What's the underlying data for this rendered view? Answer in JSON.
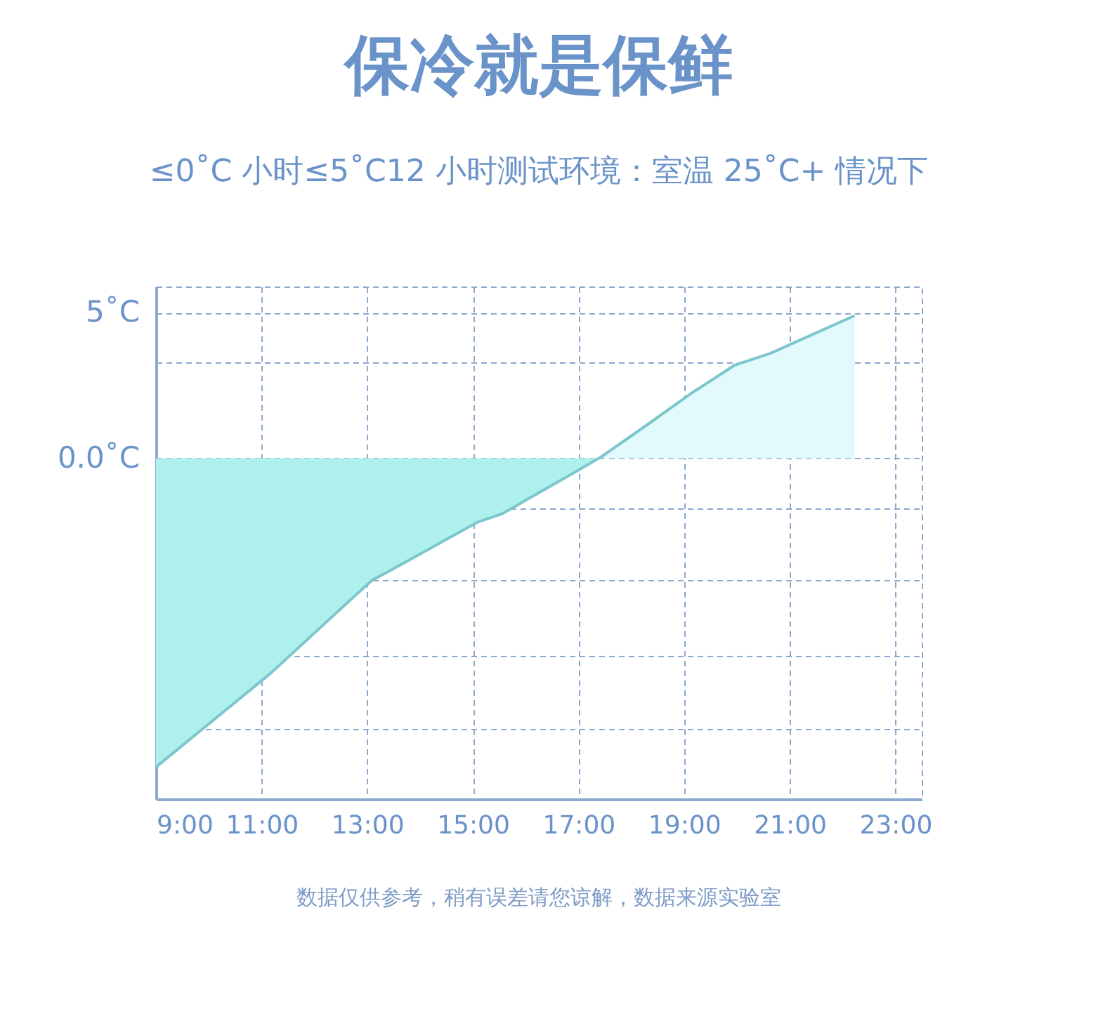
{
  "chart_data": {
    "type": "area",
    "title": "保冷就是保鲜",
    "subtitle": "≤0˚C 小时≤5˚C12 小时测试环境：室温 25˚C+ 情况下",
    "annotations": [
      "数据仅供参考，稍有误差请您谅解，数据来源实验室"
    ],
    "series": [
      {
        "color": "#aef0ec",
        "x": [
          9,
          11.16,
          13.08,
          13.69,
          15.08,
          15.56,
          17.1,
          17.43
        ],
        "values": [
          -10.6,
          -7.4,
          -4.2,
          -3.6,
          -2.2,
          -1.9,
          -0.3,
          0.05
        ]
      },
      {
        "color": "#e2fafb",
        "x": [
          17.43,
          18.23,
          19.16,
          19.96,
          20.63,
          22.23
        ],
        "values": [
          0.05,
          1.06,
          2.26,
          3.2,
          3.6,
          4.9
        ]
      },
      {
        "type": "line",
        "color": "#7cc6cc",
        "x": [
          9,
          11.16,
          13.08,
          13.69,
          15.08,
          15.56,
          17.1,
          17.43,
          18.23,
          19.16,
          19.96,
          20.63,
          22.23
        ],
        "values": [
          -10.6,
          -7.4,
          -4.2,
          -3.6,
          -2.2,
          -1.9,
          -0.3,
          0.05,
          1.06,
          2.26,
          3.2,
          3.6,
          4.9
        ]
      }
    ],
    "xlim": [
      9,
      23.5
    ],
    "xticks": [
      {
        "value": 9,
        "label": "9:00"
      },
      {
        "value": 11,
        "label": "11:00"
      },
      {
        "value": 13,
        "label": "13:00"
      },
      {
        "value": 15,
        "label": "15:00"
      },
      {
        "value": 17,
        "label": "17:00"
      },
      {
        "value": 19,
        "label": "19:00"
      },
      {
        "value": 21,
        "label": "21:00"
      },
      {
        "value": 23,
        "label": "23:00"
      }
    ],
    "ylim": [
      -11.7,
      5.9
    ],
    "yticks": [
      {
        "value": 5,
        "label": "5˚C"
      },
      {
        "value": 0,
        "label": "0.0˚C"
      },
      {
        "value": 3.3,
        "label": null
      },
      {
        "value": -1.7,
        "label": null
      },
      {
        "value": -4.2,
        "label": null
      },
      {
        "value": -6.8,
        "label": null
      },
      {
        "value": -9.3,
        "label": null
      }
    ],
    "grid": true
  }
}
